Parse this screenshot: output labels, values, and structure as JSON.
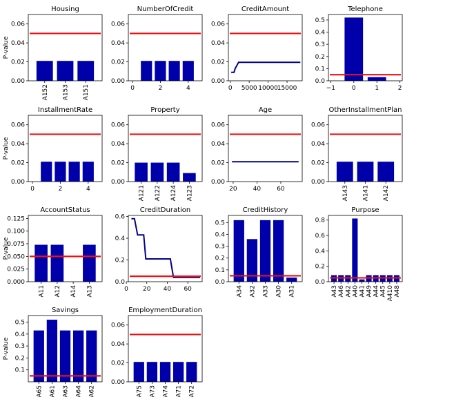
{
  "colors": {
    "bar": "#0000aa",
    "threshold": "#ee1111",
    "line": "#00008b",
    "axis": "#000000"
  },
  "chart_data": [
    {
      "type": "bar",
      "title": "Housing",
      "ylabel": "P-value",
      "categories": [
        "A152",
        "A153",
        "A151"
      ],
      "values": [
        0.021,
        0.021,
        0.021
      ],
      "ylim": [
        0,
        0.07
      ],
      "yticks": [
        "0.00",
        "0.02",
        "0.04",
        "0.06"
      ],
      "yticks_values": [
        0,
        0.02,
        0.04,
        0.06
      ],
      "threshold": 0.05
    },
    {
      "type": "bar",
      "title": "NumberOfCredit",
      "ylabel": "",
      "x": [
        1,
        2,
        3,
        4
      ],
      "values": [
        0.021,
        0.021,
        0.021,
        0.021
      ],
      "xlim": [
        -0.3,
        5.0
      ],
      "xticks": [
        "0",
        "2",
        "4"
      ],
      "xticks_values": [
        0,
        2,
        4
      ],
      "ylim": [
        0,
        0.07
      ],
      "yticks": [
        "0.00",
        "0.02",
        "0.04",
        "0.06"
      ],
      "yticks_values": [
        0,
        0.02,
        0.04,
        0.06
      ],
      "threshold": 0.05
    },
    {
      "type": "line",
      "title": "CreditAmount",
      "ylabel": "",
      "x": [
        250,
        1000,
        1300,
        2200,
        18500
      ],
      "values": [
        0.009,
        0.009,
        0.013,
        0.0195,
        0.0195
      ],
      "xlim": [
        -500,
        19000
      ],
      "xticks": [
        "0",
        "5000",
        "10000",
        "15000"
      ],
      "xticks_values": [
        0,
        5000,
        10000,
        15000
      ],
      "ylim": [
        0,
        0.07
      ],
      "yticks": [
        "0.00",
        "0.02",
        "0.04",
        "0.06"
      ],
      "yticks_values": [
        0,
        0.02,
        0.04,
        0.06
      ],
      "threshold": 0.05
    },
    {
      "type": "bar",
      "title": "Telephone",
      "ylabel": "",
      "x": [
        0,
        1
      ],
      "values": [
        0.52,
        0.03
      ],
      "xlim": [
        -1.1,
        2.1
      ],
      "xticks": [
        "−1",
        "0",
        "1",
        "2"
      ],
      "xticks_values": [
        -1,
        0,
        1,
        2
      ],
      "ylim": [
        0,
        0.545
      ],
      "yticks": [
        "0.0",
        "0.1",
        "0.2",
        "0.3",
        "0.4",
        "0.5"
      ],
      "yticks_values": [
        0,
        0.1,
        0.2,
        0.3,
        0.4,
        0.5
      ],
      "threshold": 0.05
    },
    {
      "type": "bar",
      "title": "InstallmentRate",
      "ylabel": "P-value",
      "x": [
        1,
        2,
        3,
        4
      ],
      "values": [
        0.021,
        0.021,
        0.021,
        0.021
      ],
      "xlim": [
        -0.3,
        5.0
      ],
      "xticks": [
        "0",
        "2",
        "4"
      ],
      "xticks_values": [
        0,
        2,
        4
      ],
      "ylim": [
        0,
        0.07
      ],
      "yticks": [
        "0.00",
        "0.02",
        "0.04",
        "0.06"
      ],
      "yticks_values": [
        0,
        0.02,
        0.04,
        0.06
      ],
      "threshold": 0.05
    },
    {
      "type": "bar",
      "title": "Property",
      "ylabel": "",
      "categories": [
        "A121",
        "A122",
        "A124",
        "A123"
      ],
      "values": [
        0.02,
        0.02,
        0.02,
        0.009
      ],
      "ylim": [
        0,
        0.07
      ],
      "yticks": [
        "0.00",
        "0.02",
        "0.04",
        "0.06"
      ],
      "yticks_values": [
        0,
        0.02,
        0.04,
        0.06
      ],
      "threshold": 0.05
    },
    {
      "type": "line",
      "title": "Age",
      "ylabel": "",
      "x": [
        19,
        75
      ],
      "values": [
        0.021,
        0.021
      ],
      "xlim": [
        16,
        78
      ],
      "xticks": [
        "20",
        "40",
        "60"
      ],
      "xticks_values": [
        20,
        40,
        60
      ],
      "ylim": [
        0,
        0.07
      ],
      "yticks": [
        "0.00",
        "0.02",
        "0.04",
        "0.06"
      ],
      "yticks_values": [
        0,
        0.02,
        0.04,
        0.06
      ],
      "threshold": 0.05
    },
    {
      "type": "bar",
      "title": "OtherInstallmentPlan",
      "ylabel": "",
      "categories": [
        "A143",
        "A141",
        "A142"
      ],
      "values": [
        0.021,
        0.021,
        0.021
      ],
      "ylim": [
        0,
        0.07
      ],
      "yticks": [
        "0.00",
        "0.02",
        "0.04",
        "0.06"
      ],
      "yticks_values": [
        0,
        0.02,
        0.04,
        0.06
      ],
      "threshold": 0.05
    },
    {
      "type": "bar",
      "title": "AccountStatus",
      "ylabel": "P-value",
      "categories": [
        "A11",
        "A12",
        "A14",
        "A13"
      ],
      "values": [
        0.073,
        0.073,
        0,
        0.073
      ],
      "ylim": [
        0,
        0.131
      ],
      "yticks": [
        "0.000",
        "0.025",
        "0.050",
        "0.075",
        "0.100",
        "0.125"
      ],
      "yticks_values": [
        0,
        0.025,
        0.05,
        0.075,
        0.1,
        0.125
      ],
      "threshold": 0.05
    },
    {
      "type": "line",
      "title": "CreditDuration",
      "ylabel": "",
      "x": [
        5,
        8,
        11,
        17,
        19,
        28,
        33,
        43,
        46,
        72
      ],
      "values": [
        0.58,
        0.58,
        0.43,
        0.43,
        0.21,
        0.21,
        0.21,
        0.21,
        0.04,
        0.04
      ],
      "xlim": [
        2,
        74
      ],
      "xticks": [
        "0",
        "20",
        "40",
        "60"
      ],
      "xticks_values": [
        0,
        20,
        40,
        60
      ],
      "ylim": [
        0,
        0.61
      ],
      "yticks": [
        "0.0",
        "0.2",
        "0.4",
        "0.6"
      ],
      "yticks_values": [
        0,
        0.2,
        0.4,
        0.6
      ],
      "threshold": 0.05
    },
    {
      "type": "bar",
      "title": "CreditHistory",
      "ylabel": "",
      "categories": [
        "A34",
        "A32",
        "A33",
        "A30",
        "A31"
      ],
      "values": [
        0.52,
        0.36,
        0.52,
        0.52,
        0.035
      ],
      "ylim": [
        0,
        0.56
      ],
      "yticks": [
        "0.0",
        "0.1",
        "0.2",
        "0.3",
        "0.4",
        "0.5"
      ],
      "yticks_values": [
        0,
        0.1,
        0.2,
        0.3,
        0.4,
        0.5
      ],
      "threshold": 0.05
    },
    {
      "type": "bar",
      "title": "Purpose",
      "ylabel": "",
      "categories": [
        "A43",
        "A46",
        "A42",
        "A40",
        "A41",
        "A49",
        "A44",
        "A45",
        "A410",
        "A48"
      ],
      "values": [
        0.085,
        0.085,
        0.085,
        0.82,
        0.03,
        0.085,
        0.085,
        0.085,
        0.085,
        0.085
      ],
      "ylim": [
        0,
        0.86
      ],
      "yticks": [
        "0.0",
        "0.2",
        "0.4",
        "0.6",
        "0.8"
      ],
      "yticks_values": [
        0,
        0.2,
        0.4,
        0.6,
        0.8
      ],
      "threshold": 0.05
    },
    {
      "type": "bar",
      "title": "Savings",
      "ylabel": "P-value",
      "categories": [
        "A65",
        "A61",
        "A63",
        "A64",
        "A62"
      ],
      "values": [
        0.43,
        0.52,
        0.43,
        0.43,
        0.43
      ],
      "ylim": [
        0,
        0.555
      ],
      "yticks": [
        "0.1",
        "0.2",
        "0.3",
        "0.4",
        "0.5"
      ],
      "yticks_values": [
        0.1,
        0.2,
        0.3,
        0.4,
        0.5
      ],
      "threshold": 0.05
    },
    {
      "type": "bar",
      "title": "EmploymentDuration",
      "ylabel": "",
      "categories": [
        "A75",
        "A73",
        "A74",
        "A71",
        "A72"
      ],
      "values": [
        0.021,
        0.021,
        0.021,
        0.021,
        0.021
      ],
      "ylim": [
        0,
        0.07
      ],
      "yticks": [
        "0.00",
        "0.02",
        "0.04",
        "0.06"
      ],
      "yticks_values": [
        0,
        0.02,
        0.04,
        0.06
      ],
      "threshold": 0.05
    }
  ]
}
